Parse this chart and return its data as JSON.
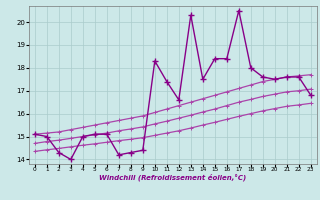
{
  "x": [
    0,
    1,
    2,
    3,
    4,
    5,
    6,
    7,
    8,
    9,
    10,
    11,
    12,
    13,
    14,
    15,
    16,
    17,
    18,
    19,
    20,
    21,
    22,
    23
  ],
  "y_main": [
    15.1,
    15.0,
    14.3,
    14.0,
    15.0,
    15.1,
    15.1,
    14.2,
    14.3,
    14.4,
    18.3,
    17.4,
    16.6,
    20.3,
    17.5,
    18.4,
    18.4,
    20.5,
    18.0,
    17.6,
    17.5,
    17.6,
    17.6,
    16.8
  ],
  "y_upper": [
    15.1,
    15.15,
    15.2,
    15.3,
    15.4,
    15.5,
    15.6,
    15.7,
    15.8,
    15.9,
    16.05,
    16.2,
    16.35,
    16.5,
    16.65,
    16.8,
    16.95,
    17.1,
    17.25,
    17.4,
    17.5,
    17.6,
    17.65,
    17.7
  ],
  "y_lower": [
    14.35,
    14.42,
    14.48,
    14.55,
    14.62,
    14.68,
    14.75,
    14.82,
    14.88,
    14.95,
    15.05,
    15.15,
    15.25,
    15.37,
    15.5,
    15.62,
    15.75,
    15.88,
    16.0,
    16.12,
    16.22,
    16.32,
    16.38,
    16.45
  ],
  "y_mid": [
    14.7,
    14.78,
    14.84,
    14.92,
    15.0,
    15.08,
    15.15,
    15.25,
    15.33,
    15.42,
    15.55,
    15.67,
    15.8,
    15.93,
    16.07,
    16.2,
    16.35,
    16.5,
    16.62,
    16.75,
    16.85,
    16.95,
    17.0,
    17.07
  ],
  "color_main": "#880088",
  "color_upper": "#aa44aa",
  "color_lower": "#aa44aa",
  "color_mid": "#aa44aa",
  "bg_color": "#cce8e8",
  "grid_color": "#aacccc",
  "xlabel": "Windchill (Refroidissement éolien,°C)",
  "xlim": [
    -0.5,
    23.5
  ],
  "ylim": [
    13.8,
    20.7
  ],
  "xticks": [
    0,
    1,
    2,
    3,
    4,
    5,
    6,
    7,
    8,
    9,
    10,
    11,
    12,
    13,
    14,
    15,
    16,
    17,
    18,
    19,
    20,
    21,
    22,
    23
  ],
  "yticks": [
    14,
    15,
    16,
    17,
    18,
    19,
    20
  ]
}
